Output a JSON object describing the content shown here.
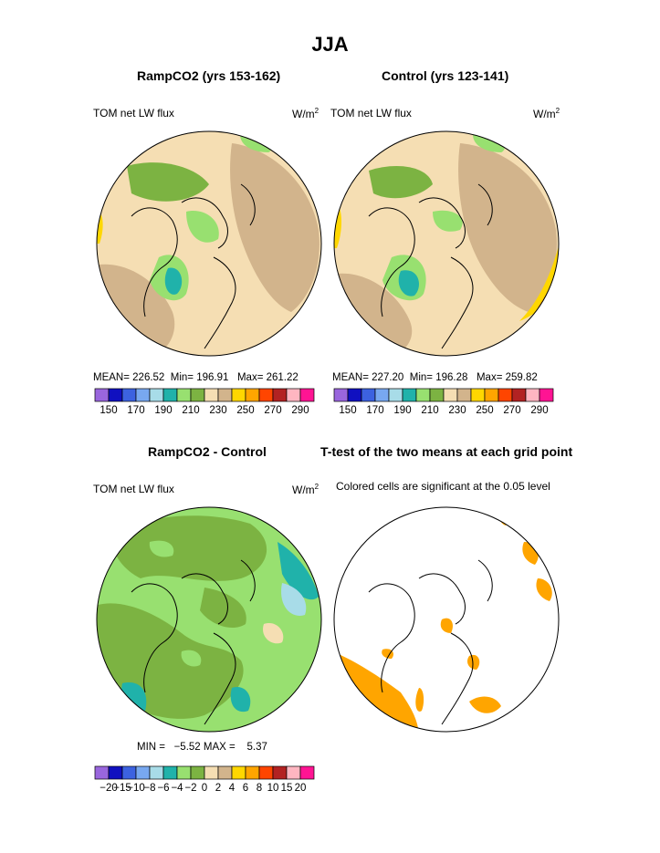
{
  "main_title": "JJA",
  "panels": [
    {
      "title": "RampCO2 (yrs 153-162)",
      "field_label": "TOM net LW flux",
      "units_base": "W/m",
      "units_exp": "2",
      "mean_label": "MEAN=",
      "mean": "226.52",
      "min_label": "Min=",
      "min": "196.91",
      "max_label": "Max=",
      "max": "261.22"
    },
    {
      "title": "Control (yrs 123-141)",
      "field_label": "TOM net LW flux",
      "units_base": "W/m",
      "units_exp": "2",
      "mean_label": "MEAN=",
      "mean": "227.20",
      "min_label": "Min=",
      "min": "196.28",
      "max_label": "Max=",
      "max": "259.82"
    },
    {
      "title": "RampCO2 - Control",
      "field_label": "TOM net LW flux",
      "units_base": "W/m",
      "units_exp": "2",
      "min_label": "MIN =",
      "min": "−5.52",
      "max_label": "MAX =",
      "max": "5.37"
    },
    {
      "title": "T-test of the two means at each grid point",
      "subtitle": "Colored cells are significant at the 0.05 level"
    }
  ],
  "chart_data": [
    {
      "type": "heatmap",
      "projection": "north-polar-stereographic",
      "title": "RampCO2 (yrs 153-162)",
      "colorbar": {
        "colors": [
          "#9966dd",
          "#1010c0",
          "#3c62e0",
          "#78a8f0",
          "#a8dce8",
          "#20b2aa",
          "#98e070",
          "#7cb342",
          "#f5deb3",
          "#d2b48c",
          "#ffd700",
          "#ffa500",
          "#ff4500",
          "#b22222",
          "#ffb6c1",
          "#ff1493"
        ],
        "tick_labels": [
          "150",
          "170",
          "190",
          "210",
          "230",
          "250",
          "270",
          "290"
        ]
      },
      "stats": {
        "mean": 226.52,
        "min": 196.91,
        "max": 261.22
      }
    },
    {
      "type": "heatmap",
      "projection": "north-polar-stereographic",
      "title": "Control (yrs 123-141)",
      "colorbar": {
        "colors": [
          "#9966dd",
          "#1010c0",
          "#3c62e0",
          "#78a8f0",
          "#a8dce8",
          "#20b2aa",
          "#98e070",
          "#7cb342",
          "#f5deb3",
          "#d2b48c",
          "#ffd700",
          "#ffa500",
          "#ff4500",
          "#b22222",
          "#ffb6c1",
          "#ff1493"
        ],
        "tick_labels": [
          "150",
          "170",
          "190",
          "210",
          "230",
          "250",
          "270",
          "290"
        ]
      },
      "stats": {
        "mean": 227.2,
        "min": 196.28,
        "max": 259.82
      }
    },
    {
      "type": "heatmap",
      "projection": "north-polar-stereographic",
      "title": "RampCO2 - Control",
      "colorbar": {
        "colors": [
          "#9966dd",
          "#1010c0",
          "#3c62e0",
          "#78a8f0",
          "#a8dce8",
          "#20b2aa",
          "#98e070",
          "#7cb342",
          "#f5deb3",
          "#d2b48c",
          "#ffd700",
          "#ffa500",
          "#ff4500",
          "#b22222",
          "#ffb6c1",
          "#ff1493"
        ],
        "tick_labels": [
          "−20",
          "−15",
          "−10",
          "−8",
          "−6",
          "−4",
          "−2",
          "0",
          "2",
          "4",
          "6",
          "8",
          "10",
          "15",
          "20"
        ]
      },
      "stats": {
        "min": -5.52,
        "max": 5.37
      }
    },
    {
      "type": "heatmap",
      "projection": "north-polar-stereographic",
      "title": "T-test of the two means at each grid point",
      "significance_color": "#ffa500"
    }
  ],
  "colors": {
    "land_base": "#f5deb3",
    "tan": "#d2b48c",
    "green": "#7cb342",
    "lightgreen": "#98e070",
    "teal": "#20b2aa",
    "yellow": "#ffd700",
    "orange": "#ffa500",
    "coast": "#000000"
  }
}
